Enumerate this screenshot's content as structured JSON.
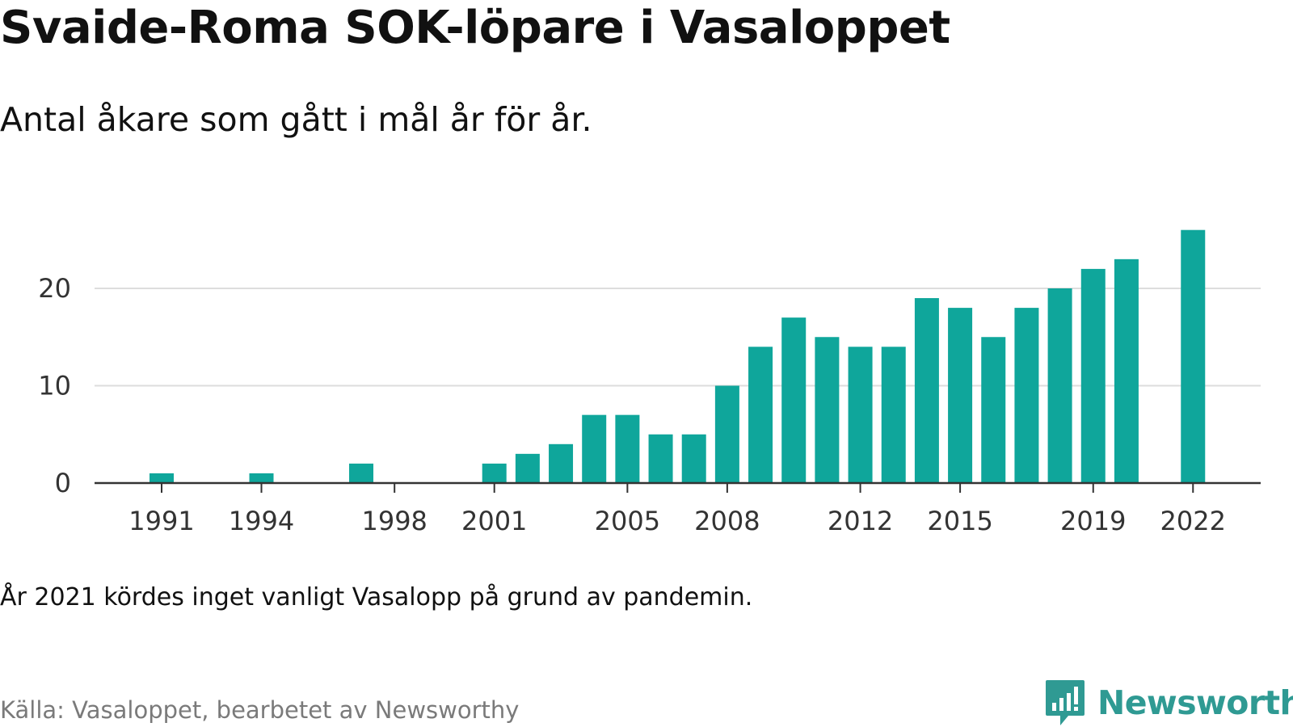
{
  "title": "Svaide-Roma SOK-löpare i Vasaloppet",
  "subtitle": "Antal åkare som gått i mål år för år.",
  "note": "År 2021 kördes inget vanligt Vasalopp på grund av pandemin.",
  "source": "Källa: Vasaloppet, bearbetet av Newsworthy",
  "brand": {
    "name": "Newsworthy",
    "icon": "newsworthy-logo-icon",
    "color": "#2f9a93"
  },
  "chart_data": {
    "type": "bar",
    "title": "Svaide-Roma SOK-löpare i Vasaloppet",
    "subtitle": "Antal åkare som gått i mål år för år.",
    "xlabel": "",
    "ylabel": "",
    "categories": [
      1991,
      1992,
      1993,
      1994,
      1995,
      1996,
      1997,
      1998,
      1999,
      2000,
      2001,
      2002,
      2003,
      2004,
      2005,
      2006,
      2007,
      2008,
      2009,
      2010,
      2011,
      2012,
      2013,
      2014,
      2015,
      2016,
      2017,
      2018,
      2019,
      2020,
      2021,
      2022
    ],
    "values": [
      1,
      0,
      0,
      1,
      0,
      0,
      2,
      0,
      0,
      0,
      2,
      3,
      4,
      7,
      7,
      5,
      5,
      10,
      14,
      17,
      15,
      14,
      14,
      19,
      18,
      15,
      18,
      20,
      22,
      23,
      0,
      26
    ],
    "x_tick_labels": [
      "1991",
      "1994",
      "1998",
      "2001",
      "2005",
      "2008",
      "2012",
      "2015",
      "2019",
      "2022"
    ],
    "y_ticks": [
      0,
      10,
      20
    ],
    "ylim": [
      0,
      27
    ],
    "grid": true,
    "legend": "none",
    "bar_color": "#0fa69b",
    "gridline_color": "#dddddd",
    "axis_color": "#333333"
  }
}
